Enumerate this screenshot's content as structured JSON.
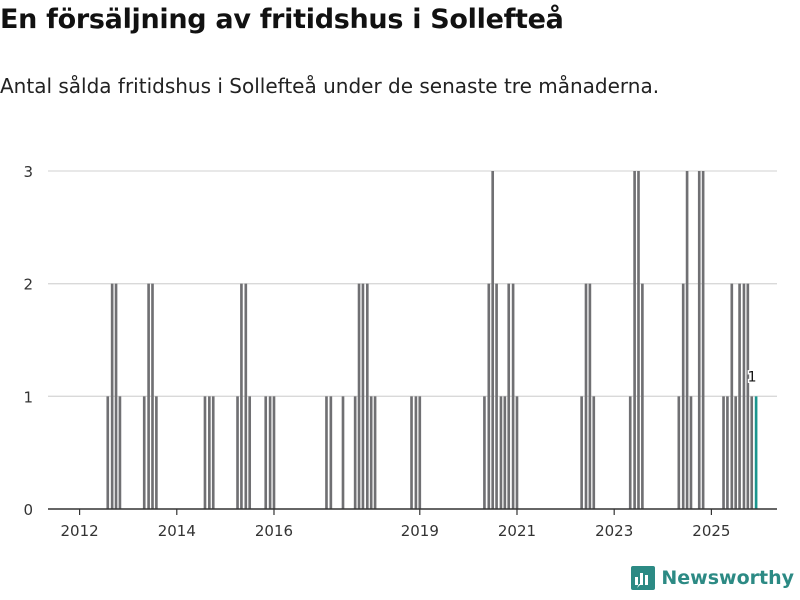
{
  "title": "En försäljning av fritidshus i Sollefteå",
  "subtitle": "Antal sålda fritidshus i Sollefteå under de senaste tre månaderna.",
  "brand": "Newsworthy",
  "colors": {
    "bar": "#707073",
    "highlight": "#1a958e",
    "grid": "#d9d9d9",
    "axis": "#333333",
    "brand": "#2c8a84"
  },
  "chart_data": {
    "type": "bar",
    "title": "En försäljning av fritidshus i Sollefteå",
    "xlabel": "",
    "ylabel": "",
    "ylim": [
      0,
      3
    ],
    "xlim": [
      2011.35,
      2026.35
    ],
    "grid": true,
    "y_ticks": [
      "0",
      "1",
      "2",
      "3"
    ],
    "x_ticks": [
      {
        "label": "2012",
        "value": 2012.0
      },
      {
        "label": "2014",
        "value": 2014.0
      },
      {
        "label": "2016",
        "value": 2016.0
      },
      {
        "label": "2019",
        "value": 2019.0
      },
      {
        "label": "2021",
        "value": 2021.0
      },
      {
        "label": "2023",
        "value": 2023.0
      },
      {
        "label": "2025",
        "value": 2025.0
      }
    ],
    "bar_width_years": 0.0833,
    "series": [
      {
        "name": "Antal sålda fritidshus",
        "x": [
          2012.58,
          2012.67,
          2012.75,
          2012.83,
          2013.33,
          2013.42,
          2013.5,
          2013.58,
          2014.58,
          2014.67,
          2014.75,
          2015.25,
          2015.33,
          2015.42,
          2015.5,
          2015.83,
          2015.92,
          2016.0,
          2017.08,
          2017.17,
          2017.42,
          2017.67,
          2017.75,
          2017.83,
          2017.92,
          2018.0,
          2018.08,
          2018.83,
          2018.92,
          2019.0,
          2020.33,
          2020.42,
          2020.5,
          2020.58,
          2020.67,
          2020.75,
          2020.83,
          2020.92,
          2021.0,
          2022.33,
          2022.42,
          2022.5,
          2022.58,
          2023.33,
          2023.42,
          2023.5,
          2023.58,
          2024.33,
          2024.42,
          2024.5,
          2024.58,
          2024.75,
          2024.83,
          2025.25,
          2025.33,
          2025.42,
          2025.5,
          2025.58,
          2025.67,
          2025.75,
          2025.83
        ],
        "values": [
          1,
          2,
          2,
          1,
          1,
          2,
          2,
          1,
          1,
          1,
          1,
          1,
          2,
          2,
          1,
          1,
          1,
          1,
          1,
          1,
          1,
          1,
          2,
          2,
          2,
          1,
          1,
          1,
          1,
          1,
          1,
          2,
          3,
          2,
          1,
          1,
          2,
          2,
          1,
          1,
          2,
          2,
          1,
          1,
          3,
          3,
          2,
          1,
          2,
          3,
          1,
          3,
          3,
          1,
          1,
          2,
          1,
          2,
          2,
          2,
          1
        ]
      }
    ],
    "highlight": {
      "x": 2025.92,
      "value": 1,
      "label": "1"
    }
  }
}
